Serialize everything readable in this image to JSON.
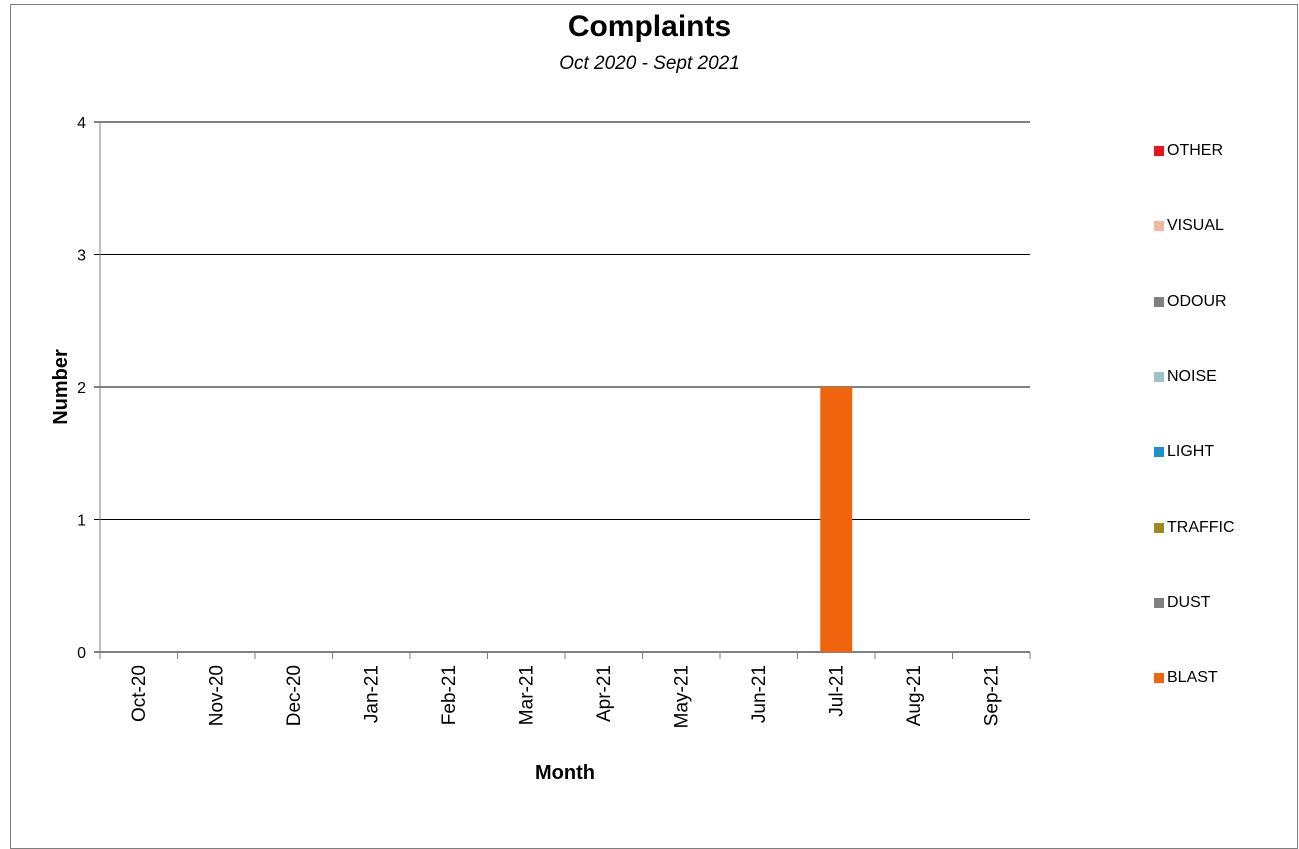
{
  "chart_data": {
    "type": "bar",
    "title": "Complaints",
    "subtitle": "Oct 2020 - Sept 2021",
    "xlabel": "Month",
    "ylabel": "Number",
    "ylim": [
      0,
      4
    ],
    "yticks": [
      0,
      1,
      2,
      3,
      4
    ],
    "grid": true,
    "legend_position": "right",
    "stacked": true,
    "categories": [
      "Oct-20",
      "Nov-20",
      "Dec-20",
      "Jan-21",
      "Feb-21",
      "Mar-21",
      "Apr-21",
      "May-21",
      "Jun-21",
      "Jul-21",
      "Aug-21",
      "Sep-21"
    ],
    "series": [
      {
        "name": "BLAST",
        "color": "#f0640e",
        "values": [
          0,
          0,
          0,
          0,
          0,
          0,
          0,
          0,
          0,
          2,
          0,
          0
        ]
      },
      {
        "name": "DUST",
        "color": "#808080",
        "values": [
          0,
          0,
          0,
          0,
          0,
          0,
          0,
          0,
          0,
          0,
          0,
          0
        ]
      },
      {
        "name": "TRAFFIC",
        "color": "#9c8a1e",
        "values": [
          0,
          0,
          0,
          0,
          0,
          0,
          0,
          0,
          0,
          0,
          0,
          0
        ]
      },
      {
        "name": "LIGHT",
        "color": "#1f8fd0",
        "values": [
          0,
          0,
          0,
          0,
          0,
          0,
          0,
          0,
          0,
          0,
          0,
          0
        ]
      },
      {
        "name": "NOISE",
        "color": "#9cc3c6",
        "values": [
          0,
          0,
          0,
          0,
          0,
          0,
          0,
          0,
          0,
          0,
          0,
          0
        ]
      },
      {
        "name": "ODOUR",
        "color": "#7f7f7f",
        "values": [
          0,
          0,
          0,
          0,
          0,
          0,
          0,
          0,
          0,
          0,
          0,
          0
        ]
      },
      {
        "name": "VISUAL",
        "color": "#f4b6a0",
        "values": [
          0,
          0,
          0,
          0,
          0,
          0,
          0,
          0,
          0,
          0,
          0,
          0
        ]
      },
      {
        "name": "OTHER",
        "color": "#e8141a",
        "values": [
          0,
          0,
          0,
          0,
          0,
          0,
          0,
          0,
          0,
          0,
          0,
          0
        ]
      }
    ]
  }
}
